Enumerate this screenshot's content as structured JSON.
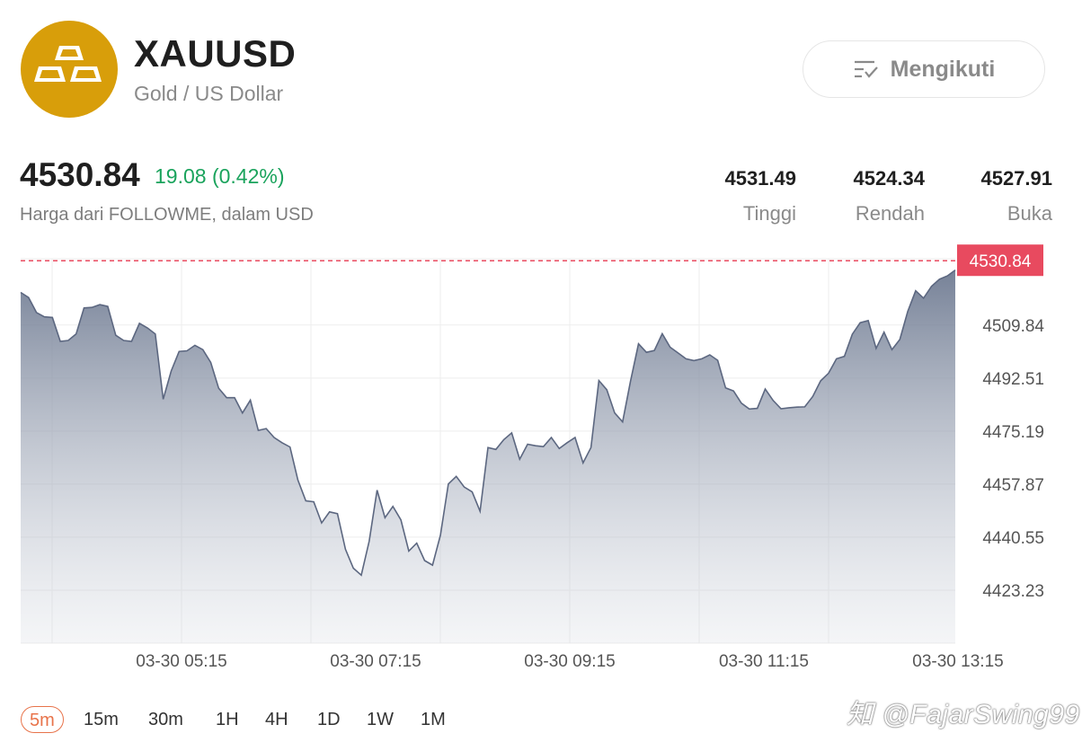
{
  "header": {
    "symbol": "XAUUSD",
    "description": "Gold / US Dollar",
    "follow_label": "Mengikuti",
    "logo_icon": "gold-bars-icon",
    "logo_color": "#D89E0A"
  },
  "quote": {
    "price": "4530.84",
    "change": "19.08 (0.42%)",
    "source": "Harga dari FOLLOWME, dalam USD",
    "change_color": "#1aa35c"
  },
  "stats": [
    {
      "value": "4531.49",
      "label": "Tinggi"
    },
    {
      "value": "4524.34",
      "label": "Rendah"
    },
    {
      "value": "4527.91",
      "label": "Buka"
    }
  ],
  "chart_data": {
    "type": "area",
    "ylim": [
      4405.9,
      4531.49
    ],
    "y_ticks": [
      "4509.84",
      "4492.51",
      "4475.19",
      "4457.87",
      "4440.55",
      "4423.23"
    ],
    "x_ticks": [
      "03-30 05:15",
      "03-30 07:15",
      "03-30 09:15",
      "03-30 11:15",
      "03-30 13:15"
    ],
    "current_price_label": "4530.84",
    "current_price": 4530.84,
    "grid": true,
    "line_color": "#5c6780",
    "price_line_color": "#e84a5f",
    "values": [
      4520.5,
      4518.8,
      4513.9,
      4512.5,
      4512.3,
      4504.5,
      4504.8,
      4506.9,
      4515.4,
      4515.6,
      4516.5,
      4515.9,
      4506.5,
      4504.8,
      4504.5,
      4510.4,
      4508.9,
      4506.9,
      4485.6,
      4494.8,
      4501.2,
      4501.4,
      4503.2,
      4501.8,
      4497.6,
      4489.2,
      4486.1,
      4486.1,
      4481.1,
      4485.3,
      4475.4,
      4476.0,
      4473.1,
      4471.4,
      4470.0,
      4459.2,
      4452.4,
      4452.1,
      4445.2,
      4448.8,
      4448.2,
      4436.6,
      4430.4,
      4428.1,
      4439.2,
      4455.9,
      4446.9,
      4450.6,
      4446.2,
      4436.0,
      4438.6,
      4432.9,
      4431.4,
      4441.2,
      4457.9,
      4460.4,
      4456.9,
      4455.3,
      4449.0,
      4469.8,
      4469.2,
      4472.4,
      4474.6,
      4466.0,
      4470.9,
      4470.4,
      4470.1,
      4473.1,
      4469.5,
      4471.4,
      4473.1,
      4464.8,
      4469.8,
      4491.7,
      4488.7,
      4481.1,
      4478.2,
      4491.5,
      4503.7,
      4500.9,
      4501.5,
      4507.0,
      4502.6,
      4500.7,
      4498.8,
      4498.2,
      4498.8,
      4500.1,
      4498.3,
      4489.3,
      4488.3,
      4484.3,
      4482.4,
      4482.6,
      4488.9,
      4485.2,
      4482.5,
      4482.8,
      4483.0,
      4483.1,
      4486.5,
      4491.6,
      4494.1,
      4498.8,
      4499.6,
      4506.8,
      4510.6,
      4511.3,
      4502.2,
      4507.5,
      4501.8,
      4505.1,
      4514.3,
      4521.0,
      4518.6,
      4522.5,
      4524.8,
      4525.9,
      4527.8
    ]
  },
  "timeframes": [
    "5m",
    "15m",
    "30m",
    "1H",
    "4H",
    "1D",
    "1W",
    "1M"
  ],
  "active_timeframe": "5m",
  "watermark": "知 @FajarSwing99"
}
